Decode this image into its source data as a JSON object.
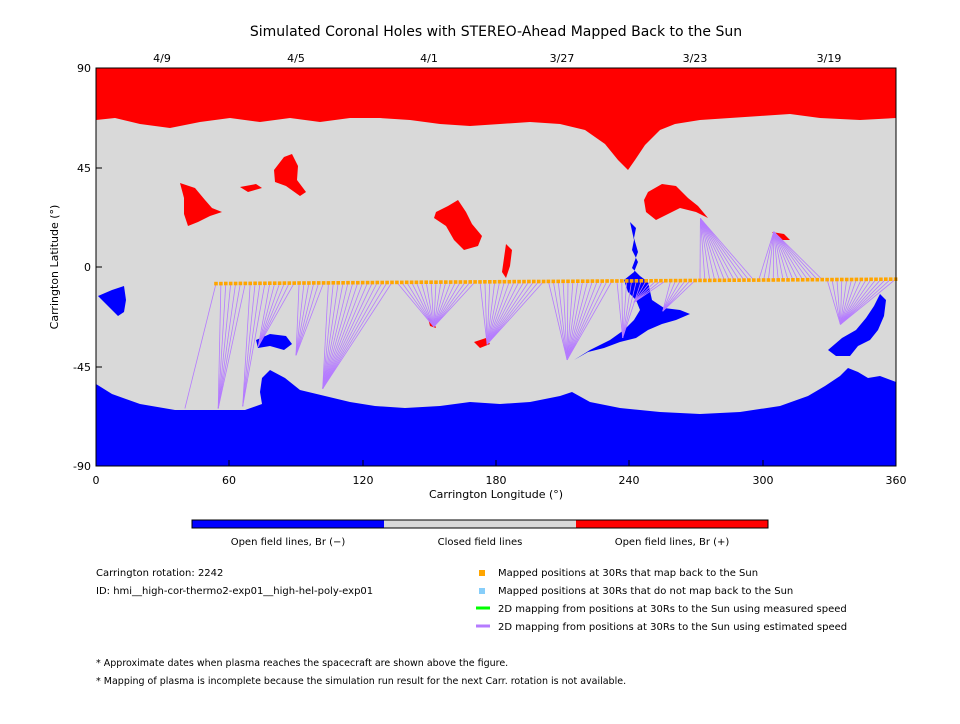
{
  "title": "Simulated Coronal Holes with STEREO-Ahead Mapped Back to the Sun",
  "top_dates": [
    "4/9",
    "4/5",
    "4/1",
    "3/27",
    "3/23",
    "3/19"
  ],
  "x_ticks": [
    "0",
    "60",
    "120",
    "180",
    "240",
    "300",
    "360"
  ],
  "y_ticks": [
    "90",
    "45",
    "0",
    "-45",
    "-90"
  ],
  "x_label": "Carrington Longitude (°)",
  "y_label": "Carrington Latitude (°)",
  "colors": {
    "open_neg": "#0000ff",
    "closed": "#d9d9d9",
    "open_pos": "#ff0000",
    "mapped": "#ffa500",
    "unmapped": "#87cefa",
    "measured": "#00ff00",
    "estimated": "#b57bff"
  },
  "colorbar": {
    "labels": [
      "Open field lines, Br (−)",
      "Closed field lines",
      "Open field lines, Br (+)"
    ]
  },
  "info": {
    "rotation": "Carrington rotation: 2242",
    "id": "ID: hmi__high-cor-thermo2-exp01__high-hel-poly-exp01"
  },
  "legend": [
    {
      "label": "Mapped positions at 30Rs that map back to the Sun",
      "kind": "square",
      "color": "#ffa500"
    },
    {
      "label": "Mapped positions at 30Rs that do not map back to the Sun",
      "kind": "square",
      "color": "#87cefa"
    },
    {
      "label": "2D mapping from positions at 30Rs to the Sun using measured speed",
      "kind": "line",
      "color": "#00ff00"
    },
    {
      "label": "2D mapping from positions at 30Rs to the Sun using estimated speed",
      "kind": "line",
      "color": "#b57bff"
    }
  ],
  "notes": [
    "* Approximate dates when plasma reaches the spacecraft are shown above the figure.",
    "* Mapping of plasma is incomplete because the simulation run result for the next Carr. rotation is not available."
  ],
  "chart_data": {
    "type": "map",
    "xlim": [
      0,
      360
    ],
    "ylim": [
      -90,
      90
    ],
    "mapped_track": {
      "lon_start": 54,
      "lon_end": 360,
      "lat_start": -7.5,
      "lat_end": -5.5
    },
    "mapping_targets": [
      {
        "lon": 40,
        "lat": -64
      },
      {
        "lon": 55,
        "lat": -64
      },
      {
        "lon": 66,
        "lat": -63
      },
      {
        "lon": 73,
        "lat": -36
      },
      {
        "lon": 90,
        "lat": -40
      },
      {
        "lon": 102,
        "lat": -55
      },
      {
        "lon": 152,
        "lat": -27
      },
      {
        "lon": 176,
        "lat": -35
      },
      {
        "lon": 212,
        "lat": -42
      },
      {
        "lon": 242,
        "lat": -16
      },
      {
        "lon": 237,
        "lat": -32
      },
      {
        "lon": 255,
        "lat": -20
      },
      {
        "lon": 272,
        "lat": 22
      },
      {
        "lon": 305,
        "lat": 16
      },
      {
        "lon": 335,
        "lat": -26
      }
    ]
  }
}
